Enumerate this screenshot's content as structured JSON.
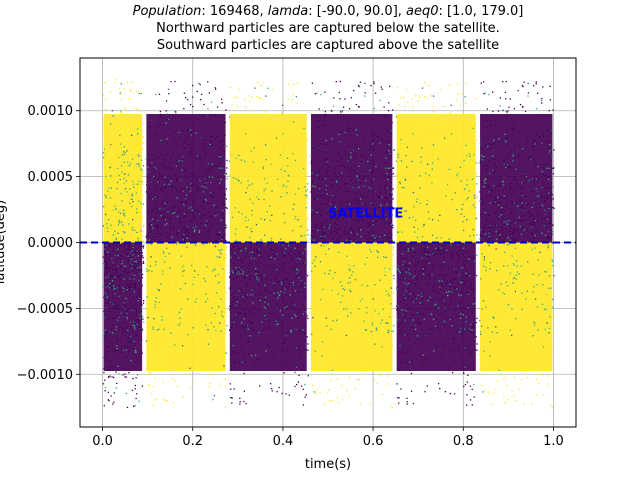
{
  "chart_data": {
    "type": "scatter",
    "title": {
      "population_label": "Population",
      "population_value": ": 169468, ",
      "lamda_label": "lamda",
      "lamda_value": ": [-90.0, 90.0], ",
      "aeq0_label": "aeq0",
      "aeq0_value": ": [1.0, 179.0]",
      "line2": "Northward particles are captured below the satellite.",
      "line3": "Southward particles are captured above the satellite"
    },
    "xlabel": "time(s)",
    "ylabel": "latitude(deg)",
    "xlim": [
      -0.05,
      1.05
    ],
    "ylim": [
      -0.0014,
      0.0014
    ],
    "xticks": [
      0.0,
      0.2,
      0.4,
      0.6,
      0.8,
      1.0
    ],
    "xtick_labels": [
      "0.0",
      "0.2",
      "0.4",
      "0.6",
      "0.8",
      "1.0"
    ],
    "yticks": [
      -0.001,
      -0.0005,
      0.0,
      0.0005,
      0.001
    ],
    "ytick_labels": [
      "−0.0010",
      "−0.0005",
      "0.0000",
      "0.0005",
      "0.0010"
    ],
    "grid": true,
    "colormap": "viridis",
    "colors": {
      "yellow": "#fde725",
      "purple": "#440154",
      "green": "#35b779",
      "teal": "#21918c",
      "blue": "#3b528b",
      "satellite": "#0000cc"
    },
    "satellite_line": {
      "y": 0.0,
      "label": "SATELLITE",
      "label_x": 0.5,
      "label_y": 0.00022
    },
    "segments": [
      {
        "x_start": 0.0,
        "x_end": 0.09,
        "upper": "yellow",
        "lower": "purple"
      },
      {
        "x_start": 0.095,
        "x_end": 0.275,
        "upper": "purple",
        "lower": "yellow"
      },
      {
        "x_start": 0.28,
        "x_end": 0.455,
        "upper": "yellow",
        "lower": "purple"
      },
      {
        "x_start": 0.46,
        "x_end": 0.645,
        "upper": "purple",
        "lower": "yellow"
      },
      {
        "x_start": 0.65,
        "x_end": 0.83,
        "upper": "yellow",
        "lower": "purple"
      },
      {
        "x_start": 0.835,
        "x_end": 1.0,
        "upper": "purple",
        "lower": "yellow"
      }
    ],
    "y_extent": 0.00125
  }
}
